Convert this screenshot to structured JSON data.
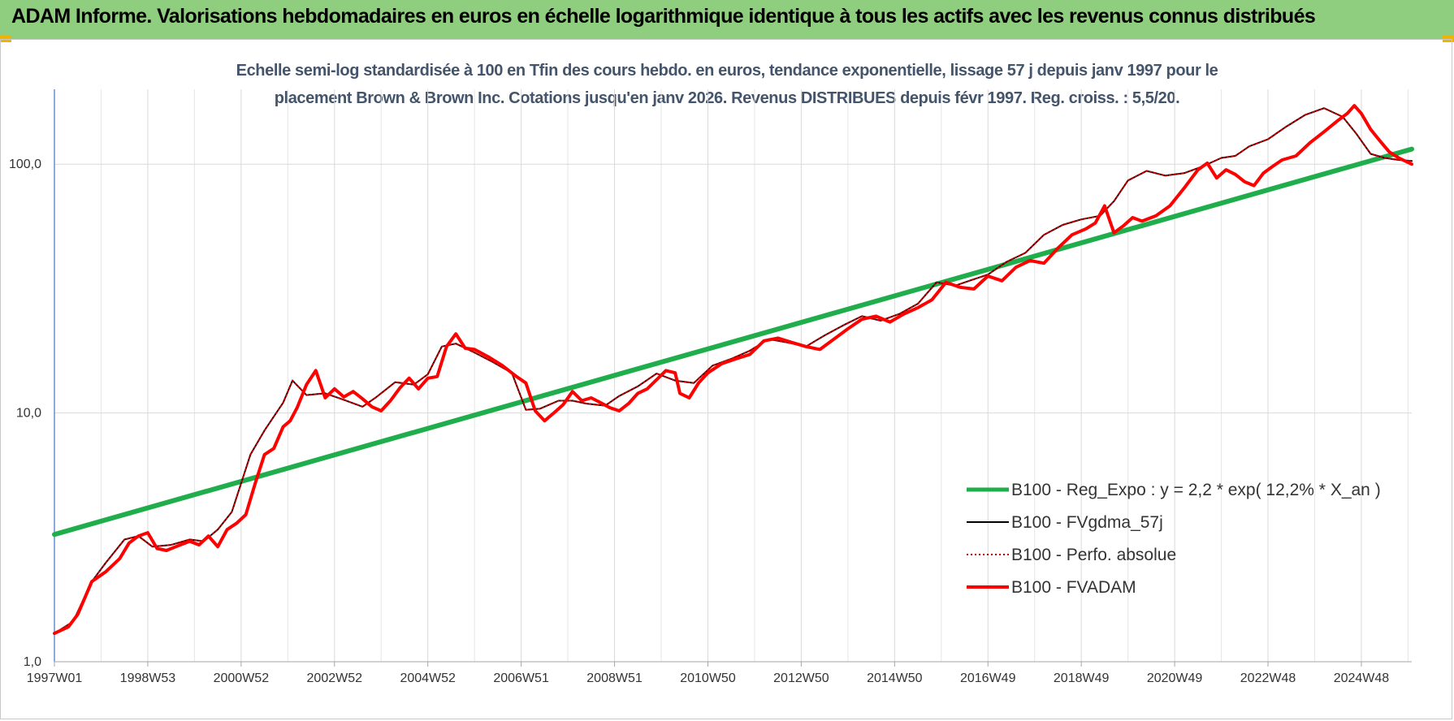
{
  "header": {
    "title": "ADAM Informe. Valorisations hebdomadaires en euros en échelle logarithmique identique à tous les actifs avec les revenus connus distribués"
  },
  "chart_data": {
    "type": "line",
    "title": "Echelle semi-log standardisée à 100 en Tfin des cours hebdo. en euros, tendance exponentielle, lissage 57 j depuis janv 1997 pour le",
    "subtitle": "placement Brown & Brown Inc. Cotations jusqu'en janv 2026.  Revenus DISTRIBUES depuis févr 1997.  Reg. croiss. : 5,5/20.",
    "xlabel": "",
    "ylabel": "",
    "y_scale": "log",
    "ylim": [
      1,
      200
    ],
    "xlim": [
      1997.0,
      2026.08
    ],
    "yticks": [
      {
        "value": 1,
        "label": "1,0"
      },
      {
        "value": 10,
        "label": "10,0"
      },
      {
        "value": 100,
        "label": "100,0"
      }
    ],
    "xticks": [
      {
        "value": 1997.0,
        "label": "1997W01"
      },
      {
        "value": 1999.0,
        "label": "1998W53"
      },
      {
        "value": 2001.0,
        "label": "2000W52"
      },
      {
        "value": 2003.0,
        "label": "2002W52"
      },
      {
        "value": 2005.0,
        "label": "2004W52"
      },
      {
        "value": 2007.0,
        "label": "2006W51"
      },
      {
        "value": 2009.0,
        "label": "2008W51"
      },
      {
        "value": 2011.0,
        "label": "2010W50"
      },
      {
        "value": 2013.0,
        "label": "2012W50"
      },
      {
        "value": 2015.0,
        "label": "2014W50"
      },
      {
        "value": 2017.0,
        "label": "2016W49"
      },
      {
        "value": 2019.0,
        "label": "2018W49"
      },
      {
        "value": 2021.0,
        "label": "2020W49"
      },
      {
        "value": 2023.0,
        "label": "2022W48"
      },
      {
        "value": 2025.0,
        "label": "2024W48"
      }
    ],
    "grid": true,
    "legend_position": "bottom-right",
    "series": [
      {
        "name": "B100 - Reg_Expo : y = 2,2 * exp( 12,2% *  X_an )",
        "color": "#1fae4b",
        "style": "solid",
        "width": 6,
        "x": [
          1997.0,
          2026.08
        ],
        "y": [
          3.25,
          115
        ]
      },
      {
        "name": "B100 - FVgdma_57j",
        "color": "#000000",
        "style": "solid",
        "width": 2,
        "x": [
          1997.0,
          1997.4,
          1997.8,
          1998.1,
          1998.5,
          1998.8,
          1999.1,
          1999.5,
          1999.9,
          2000.2,
          2000.5,
          2000.8,
          2001.2,
          2001.5,
          2001.9,
          2002.1,
          2002.4,
          2002.8,
          2003.2,
          2003.6,
          2003.9,
          2004.3,
          2004.7,
          2005.0,
          2005.3,
          2005.6,
          2006.0,
          2006.4,
          2006.8,
          2007.1,
          2007.4,
          2007.8,
          2008.1,
          2008.4,
          2008.8,
          2009.1,
          2009.5,
          2009.9,
          2010.3,
          2010.7,
          2011.1,
          2011.5,
          2011.9,
          2012.3,
          2012.7,
          2013.1,
          2013.5,
          2013.9,
          2014.3,
          2014.7,
          2015.1,
          2015.5,
          2015.9,
          2016.3,
          2016.6,
          2017.0,
          2017.4,
          2017.8,
          2018.2,
          2018.6,
          2019.0,
          2019.4,
          2019.7,
          2020.0,
          2020.4,
          2020.8,
          2021.2,
          2021.6,
          2022.0,
          2022.3,
          2022.6,
          2023.0,
          2023.4,
          2023.8,
          2024.2,
          2024.6,
          2024.9,
          2025.2,
          2025.5,
          2025.8,
          2026.08
        ],
        "y": [
          1.3,
          1.45,
          2.1,
          2.5,
          3.1,
          3.2,
          2.9,
          2.95,
          3.1,
          3.05,
          3.4,
          4.0,
          6.8,
          8.5,
          11.0,
          13.5,
          11.8,
          12.0,
          11.3,
          10.6,
          11.6,
          13.3,
          13.0,
          14.3,
          18.5,
          19.0,
          17.5,
          16.0,
          14.5,
          10.3,
          10.4,
          11.2,
          11.2,
          10.9,
          10.7,
          11.7,
          12.8,
          14.4,
          13.5,
          13.2,
          15.5,
          16.5,
          17.8,
          19.8,
          19.2,
          18.5,
          20.5,
          22.5,
          24.5,
          23.5,
          25.0,
          27.5,
          33.5,
          32.5,
          34.0,
          36.0,
          40.5,
          44.0,
          52.0,
          57.0,
          60.0,
          62.0,
          71.0,
          86.0,
          94.0,
          90.0,
          92.0,
          98.0,
          106.0,
          108.0,
          118.0,
          126.0,
          142.0,
          158.0,
          168.0,
          155.0,
          132.0,
          110.0,
          106.0,
          104.0,
          103.0
        ]
      },
      {
        "name": "B100 - Perfo. absolue",
        "color": "#c00000",
        "style": "dotted",
        "width": 2,
        "x": [
          1997.0,
          1997.4,
          1997.8,
          1998.1,
          1998.5,
          1998.8,
          1999.1,
          1999.5,
          1999.9,
          2000.2,
          2000.5,
          2000.8,
          2001.2,
          2001.5,
          2001.9,
          2002.1,
          2002.4,
          2002.8,
          2003.2,
          2003.6,
          2003.9,
          2004.3,
          2004.7,
          2005.0,
          2005.3,
          2005.6,
          2006.0,
          2006.4,
          2006.8,
          2007.1,
          2007.4,
          2007.8,
          2008.1,
          2008.4,
          2008.8,
          2009.1,
          2009.5,
          2009.9,
          2010.3,
          2010.7,
          2011.1,
          2011.5,
          2011.9,
          2012.3,
          2012.7,
          2013.1,
          2013.5,
          2013.9,
          2014.3,
          2014.7,
          2015.1,
          2015.5,
          2015.9,
          2016.3,
          2016.6,
          2017.0,
          2017.4,
          2017.8,
          2018.2,
          2018.6,
          2019.0,
          2019.4,
          2019.7,
          2020.0,
          2020.4,
          2020.8,
          2021.2,
          2021.6,
          2022.0,
          2022.3,
          2022.6,
          2023.0,
          2023.4,
          2023.8,
          2024.2,
          2024.6,
          2024.9,
          2025.2,
          2025.5,
          2025.8,
          2026.08
        ],
        "y": [
          1.3,
          1.45,
          2.1,
          2.5,
          3.1,
          3.2,
          2.9,
          2.95,
          3.1,
          3.05,
          3.4,
          4.0,
          6.8,
          8.5,
          11.0,
          13.5,
          11.8,
          12.0,
          11.3,
          10.6,
          11.6,
          13.3,
          13.0,
          14.3,
          18.5,
          19.0,
          17.5,
          16.0,
          14.5,
          10.3,
          10.4,
          11.2,
          11.2,
          10.9,
          10.7,
          11.7,
          12.8,
          14.4,
          13.5,
          13.2,
          15.5,
          16.5,
          17.8,
          19.8,
          19.2,
          18.5,
          20.5,
          22.5,
          24.5,
          23.5,
          25.0,
          27.5,
          33.5,
          32.5,
          34.0,
          36.0,
          40.5,
          44.0,
          52.0,
          57.0,
          60.0,
          62.0,
          71.0,
          86.0,
          94.0,
          90.0,
          92.0,
          98.0,
          106.0,
          108.0,
          118.0,
          126.0,
          142.0,
          158.0,
          168.0,
          155.0,
          132.0,
          110.0,
          106.0,
          104.0,
          103.0
        ]
      },
      {
        "name": "B100 - FVADAM",
        "color": "#ff0000",
        "style": "solid",
        "width": 4,
        "x": [
          1997.0,
          1997.3,
          1997.5,
          1997.8,
          1998.1,
          1998.4,
          1998.6,
          1998.8,
          1999.0,
          1999.2,
          1999.4,
          1999.6,
          1999.9,
          2000.1,
          2000.3,
          2000.5,
          2000.7,
          2000.9,
          2001.1,
          2001.3,
          2001.5,
          2001.7,
          2001.9,
          2002.05,
          2002.2,
          2002.4,
          2002.6,
          2002.8,
          2003.0,
          2003.2,
          2003.4,
          2003.6,
          2003.8,
          2004.0,
          2004.2,
          2004.4,
          2004.6,
          2004.8,
          2005.0,
          2005.2,
          2005.4,
          2005.6,
          2005.8,
          2006.0,
          2006.3,
          2006.6,
          2006.9,
          2007.1,
          2007.3,
          2007.5,
          2007.7,
          2007.9,
          2008.1,
          2008.3,
          2008.5,
          2008.7,
          2008.9,
          2009.1,
          2009.3,
          2009.5,
          2009.7,
          2009.9,
          2010.1,
          2010.3,
          2010.4,
          2010.6,
          2010.8,
          2011.0,
          2011.3,
          2011.6,
          2011.9,
          2012.2,
          2012.5,
          2012.8,
          2013.1,
          2013.4,
          2013.7,
          2014.0,
          2014.3,
          2014.6,
          2014.9,
          2015.2,
          2015.5,
          2015.8,
          2016.1,
          2016.4,
          2016.7,
          2017.0,
          2017.3,
          2017.6,
          2017.9,
          2018.2,
          2018.5,
          2018.8,
          2019.1,
          2019.3,
          2019.5,
          2019.7,
          2019.9,
          2020.1,
          2020.3,
          2020.6,
          2020.9,
          2021.2,
          2021.5,
          2021.7,
          2021.9,
          2022.1,
          2022.3,
          2022.5,
          2022.7,
          2022.9,
          2023.1,
          2023.3,
          2023.6,
          2023.9,
          2024.2,
          2024.5,
          2024.7,
          2024.85,
          2025.0,
          2025.2,
          2025.4,
          2025.6,
          2025.8,
          2026.08
        ],
        "y": [
          1.3,
          1.38,
          1.55,
          2.1,
          2.3,
          2.6,
          3.0,
          3.2,
          3.3,
          2.85,
          2.8,
          2.9,
          3.05,
          2.95,
          3.2,
          2.9,
          3.4,
          3.6,
          3.9,
          5.2,
          6.8,
          7.2,
          8.8,
          9.3,
          10.5,
          13.0,
          14.8,
          11.5,
          12.5,
          11.6,
          12.2,
          11.4,
          10.6,
          10.2,
          11.2,
          12.6,
          13.8,
          12.5,
          13.8,
          14.0,
          18.5,
          20.8,
          18.2,
          18.0,
          16.8,
          15.5,
          14.0,
          13.2,
          10.2,
          9.3,
          10.0,
          10.8,
          12.2,
          11.2,
          11.5,
          11.0,
          10.5,
          10.2,
          10.9,
          12.0,
          12.5,
          13.6,
          14.8,
          14.5,
          12.0,
          11.5,
          13.2,
          14.5,
          15.8,
          16.5,
          17.2,
          19.5,
          20.0,
          19.2,
          18.5,
          18.0,
          19.8,
          21.8,
          23.8,
          24.5,
          23.2,
          25.0,
          26.5,
          28.5,
          33.5,
          32.0,
          31.5,
          35.5,
          34.0,
          38.5,
          41.0,
          40.0,
          46.0,
          52.0,
          55.0,
          58.0,
          68.0,
          53.0,
          56.5,
          61.0,
          59.0,
          62.0,
          68.0,
          80.0,
          95.0,
          101.0,
          88.0,
          95.0,
          91.0,
          85.0,
          82.0,
          92.0,
          98.0,
          104.0,
          108.0,
          122.0,
          135.0,
          150.0,
          160.0,
          172.0,
          160.0,
          138.0,
          124.0,
          112.0,
          106.0,
          100.0
        ]
      }
    ]
  }
}
